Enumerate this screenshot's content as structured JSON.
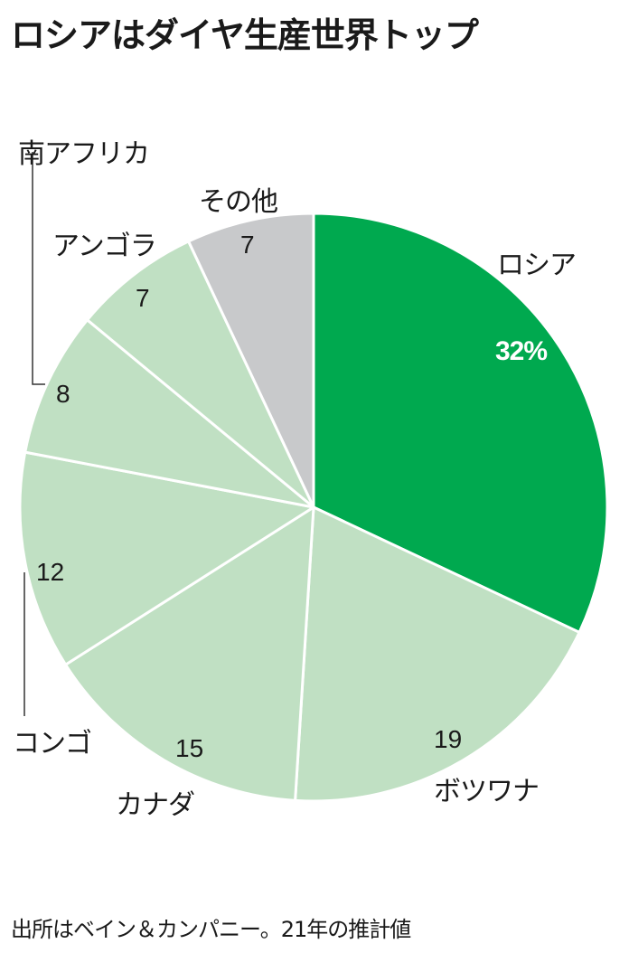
{
  "title": "ロシアはダイヤ生産世界トップ",
  "source": "出所はベイン＆カンパニー。21年の推計値",
  "colors": {
    "highlight": "#00a94f",
    "regular": "#c0e0c3",
    "other": "#c8c9cb",
    "divider": "#ffffff",
    "text": "#1a1a1a"
  },
  "slices": [
    {
      "name": "ロシア",
      "value_label": "32%"
    },
    {
      "name": "ボツワナ",
      "value_label": "19"
    },
    {
      "name": "カナダ",
      "value_label": "15"
    },
    {
      "name": "コンゴ",
      "value_label": "12"
    },
    {
      "name": "南アフリカ",
      "value_label": "8"
    },
    {
      "name": "アンゴラ",
      "value_label": "7"
    },
    {
      "name": "その他",
      "value_label": "7"
    }
  ],
  "chart_data": {
    "type": "pie",
    "title": "ロシアはダイヤ生産世界トップ",
    "unit": "%",
    "categories": [
      "ロシア",
      "ボツワナ",
      "カナダ",
      "コンゴ",
      "南アフリカ",
      "アンゴラ",
      "その他"
    ],
    "values": [
      32,
      19,
      15,
      12,
      8,
      7,
      7
    ],
    "start_angle": "12 o'clock",
    "direction": "clockwise",
    "highlighted": "ロシア",
    "note": "出所はベイン＆カンパニー。21年の推計値"
  }
}
